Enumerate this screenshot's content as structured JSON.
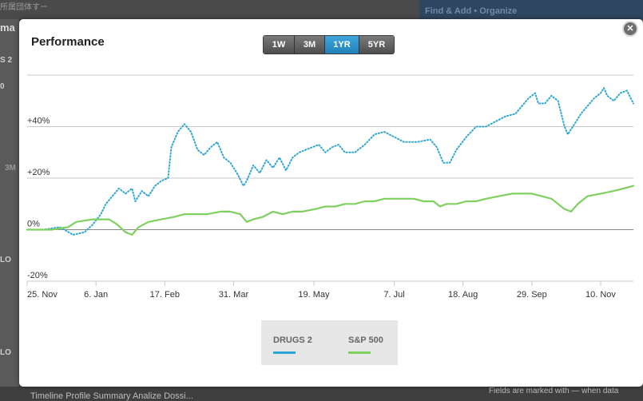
{
  "background": {
    "top_text": "所属団体すー",
    "right_link": "Find & Add • Organize",
    "left_frags": [
      "ma",
      "S 2",
      "0",
      "3M",
      "LO",
      "LO"
    ],
    "bottom_text": "Timeline  Profile  Summary  Analize  Dossi...",
    "bottom_right": "Fields are marked with — when data"
  },
  "modal": {
    "title": "Performance",
    "close_symbol": "✕",
    "ranges": [
      "1W",
      "3M",
      "1YR",
      "5YR"
    ],
    "active_range": "1YR"
  },
  "chart_data": {
    "type": "line",
    "title": "Performance",
    "ylim": [
      -20,
      60
    ],
    "y_ticks": [
      -20,
      0,
      20,
      40
    ],
    "y_tick_labels": [
      "-20%",
      "0%",
      "+20%",
      "+40%"
    ],
    "x_tick_labels": [
      "25. Nov",
      "6. Jan",
      "17. Feb",
      "31. Mar",
      "19. May",
      "7. Jul",
      "18. Aug",
      "29. Sep",
      "10. Nov"
    ],
    "x_range_days": [
      0,
      370
    ],
    "x_tick_days": [
      0,
      42,
      84,
      126,
      175,
      224,
      266,
      308,
      350
    ],
    "grid": true,
    "legend_position": "bottom",
    "series": [
      {
        "name": "DRUGS 2",
        "color": "#2ea7d8",
        "style": "dotted",
        "points": [
          [
            0,
            0
          ],
          [
            10,
            0
          ],
          [
            20,
            1
          ],
          [
            28,
            -2
          ],
          [
            35,
            -1
          ],
          [
            40,
            2
          ],
          [
            45,
            6
          ],
          [
            48,
            10
          ],
          [
            52,
            13
          ],
          [
            56,
            16
          ],
          [
            60,
            14
          ],
          [
            64,
            16
          ],
          [
            66,
            11
          ],
          [
            70,
            15
          ],
          [
            74,
            13
          ],
          [
            78,
            17
          ],
          [
            82,
            19
          ],
          [
            86,
            20
          ],
          [
            88,
            32
          ],
          [
            92,
            38
          ],
          [
            96,
            41
          ],
          [
            100,
            38
          ],
          [
            104,
            31
          ],
          [
            108,
            29
          ],
          [
            112,
            32
          ],
          [
            116,
            34
          ],
          [
            120,
            28
          ],
          [
            124,
            26
          ],
          [
            128,
            22
          ],
          [
            132,
            17
          ],
          [
            134,
            19
          ],
          [
            138,
            25
          ],
          [
            142,
            22
          ],
          [
            146,
            27
          ],
          [
            150,
            24
          ],
          [
            154,
            28
          ],
          [
            158,
            23
          ],
          [
            162,
            28
          ],
          [
            166,
            30
          ],
          [
            170,
            31
          ],
          [
            174,
            32
          ],
          [
            178,
            33
          ],
          [
            182,
            30
          ],
          [
            186,
            32
          ],
          [
            190,
            33
          ],
          [
            194,
            30
          ],
          [
            200,
            30
          ],
          [
            206,
            33
          ],
          [
            212,
            37
          ],
          [
            218,
            38
          ],
          [
            224,
            36
          ],
          [
            230,
            34
          ],
          [
            238,
            34
          ],
          [
            246,
            35
          ],
          [
            250,
            32
          ],
          [
            254,
            26
          ],
          [
            258,
            26
          ],
          [
            262,
            31
          ],
          [
            268,
            36
          ],
          [
            274,
            40
          ],
          [
            280,
            40
          ],
          [
            286,
            42
          ],
          [
            292,
            44
          ],
          [
            298,
            45
          ],
          [
            302,
            48
          ],
          [
            306,
            51
          ],
          [
            310,
            53
          ],
          [
            312,
            49
          ],
          [
            316,
            49
          ],
          [
            320,
            52
          ],
          [
            324,
            50
          ],
          [
            326,
            45
          ],
          [
            328,
            40
          ],
          [
            330,
            37
          ],
          [
            334,
            41
          ],
          [
            338,
            45
          ],
          [
            342,
            48
          ],
          [
            346,
            51
          ],
          [
            350,
            53
          ],
          [
            352,
            55
          ],
          [
            354,
            52
          ],
          [
            358,
            50
          ],
          [
            362,
            53
          ],
          [
            366,
            54
          ],
          [
            370,
            49
          ]
        ]
      },
      {
        "name": "S&P 500",
        "color": "#7ed05f",
        "style": "solid",
        "points": [
          [
            0,
            0
          ],
          [
            15,
            0
          ],
          [
            25,
            1
          ],
          [
            30,
            3
          ],
          [
            40,
            4
          ],
          [
            50,
            4
          ],
          [
            55,
            2
          ],
          [
            60,
            -1
          ],
          [
            64,
            -2
          ],
          [
            68,
            1
          ],
          [
            74,
            3
          ],
          [
            82,
            4
          ],
          [
            90,
            5
          ],
          [
            96,
            6
          ],
          [
            102,
            6
          ],
          [
            110,
            6
          ],
          [
            118,
            7
          ],
          [
            124,
            7
          ],
          [
            130,
            6
          ],
          [
            134,
            3
          ],
          [
            138,
            4
          ],
          [
            144,
            5
          ],
          [
            150,
            7
          ],
          [
            156,
            6
          ],
          [
            162,
            7
          ],
          [
            168,
            7
          ],
          [
            176,
            8
          ],
          [
            182,
            9
          ],
          [
            188,
            9
          ],
          [
            194,
            10
          ],
          [
            200,
            10
          ],
          [
            206,
            11
          ],
          [
            212,
            11
          ],
          [
            218,
            12
          ],
          [
            224,
            12
          ],
          [
            230,
            12
          ],
          [
            236,
            12
          ],
          [
            242,
            11
          ],
          [
            248,
            11
          ],
          [
            252,
            9
          ],
          [
            256,
            10
          ],
          [
            262,
            10
          ],
          [
            268,
            11
          ],
          [
            274,
            11
          ],
          [
            280,
            12
          ],
          [
            288,
            13
          ],
          [
            296,
            14
          ],
          [
            302,
            14
          ],
          [
            308,
            14
          ],
          [
            314,
            13
          ],
          [
            320,
            12
          ],
          [
            324,
            10
          ],
          [
            328,
            8
          ],
          [
            332,
            7
          ],
          [
            336,
            10
          ],
          [
            342,
            13
          ],
          [
            350,
            14
          ],
          [
            358,
            15
          ],
          [
            364,
            16
          ],
          [
            370,
            17
          ]
        ]
      }
    ]
  }
}
